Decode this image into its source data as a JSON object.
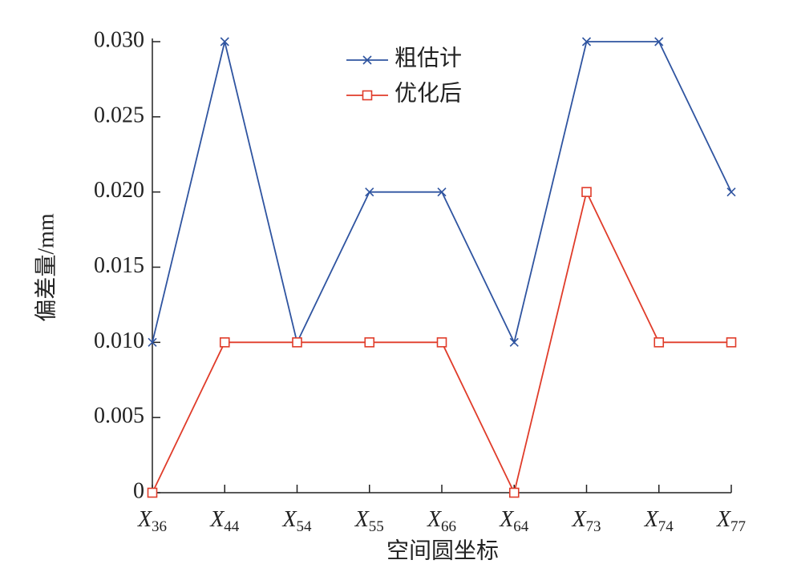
{
  "chart_data": {
    "type": "line",
    "categories": [
      "X36",
      "X44",
      "X54",
      "X55",
      "X66",
      "X64",
      "X73",
      "X74",
      "X77"
    ],
    "series": [
      {
        "name": "粗估计",
        "color": "#2f54a0",
        "marker": "x",
        "values": [
          0.01,
          0.03,
          0.01,
          0.02,
          0.02,
          0.01,
          0.03,
          0.03,
          0.02
        ]
      },
      {
        "name": "优化后",
        "color": "#e03c2a",
        "marker": "s",
        "values": [
          0,
          0.01,
          0.01,
          0.01,
          0.01,
          0,
          0.02,
          0.01,
          0.01
        ]
      }
    ],
    "ylim": [
      0,
      0.03
    ],
    "yticks": [
      0,
      {
        "value": 0.005,
        "label": "0.005"
      },
      {
        "value": 0.01,
        "label": "0.010"
      },
      {
        "value": 0.015,
        "label": "0.015"
      },
      {
        "value": 0.02,
        "label": "0.020"
      },
      {
        "value": 0.025,
        "label": "0.025"
      },
      {
        "value": 0.03,
        "label": "0.030"
      }
    ],
    "xlabel": "空间圆坐标",
    "ylabel": "偏差量/mm",
    "legend": "top",
    "grid": false
  }
}
